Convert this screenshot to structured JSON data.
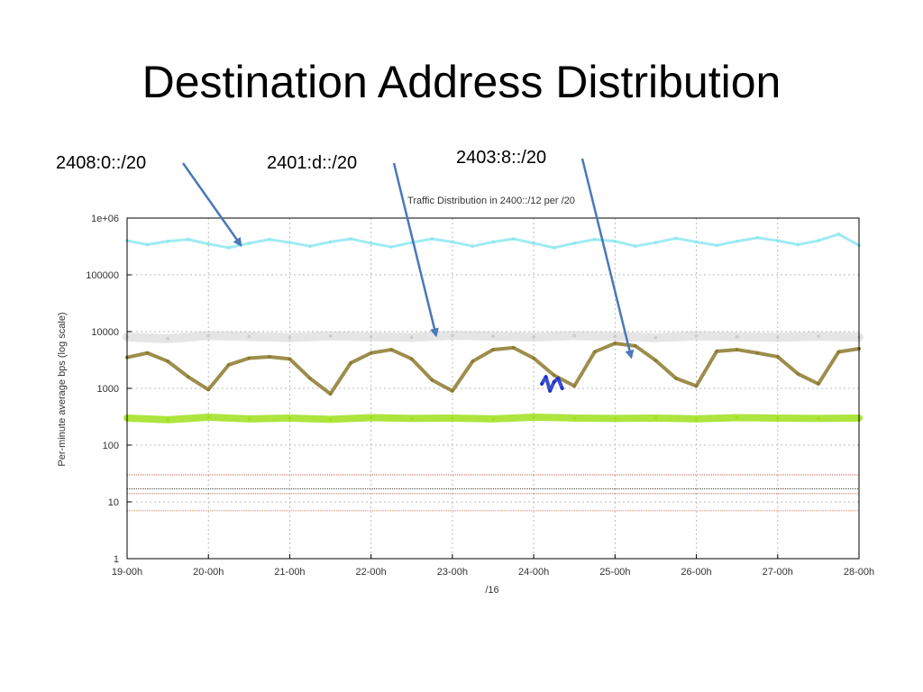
{
  "slide": {
    "title": "Destination Address Distribution"
  },
  "callouts": [
    {
      "label": "2408:0::/20",
      "target_day": 1.4,
      "target_value": 330000
    },
    {
      "label": "2401:d::/20",
      "target_day": 3.8,
      "target_value": 8500
    },
    {
      "label": "2403:8::/20",
      "target_day": 6.2,
      "target_value": 3500
    }
  ],
  "chart_data": {
    "type": "scatter",
    "title": "Traffic Distribution in 2400::/12 per /20",
    "xlabel": "/16",
    "ylabel": "Per-minute average bps (log scale)",
    "yscale": "log",
    "ylim": [
      1,
      1000000
    ],
    "xlim": [
      0,
      9
    ],
    "x_tick_labels": [
      "19-00h",
      "20-00h",
      "21-00h",
      "22-00h",
      "23-00h",
      "24-00h",
      "25-00h",
      "26-00h",
      "27-00h",
      "28-00h"
    ],
    "y_tick_labels": [
      "1",
      "10",
      "100",
      "1000",
      "10000",
      "100000",
      "1e+06"
    ],
    "grid": true,
    "series": [
      {
        "label": "2408:0::/20",
        "color": "#8ee8f0",
        "x": [
          0,
          0.25,
          0.5,
          0.75,
          1,
          1.25,
          1.5,
          1.75,
          2,
          2.25,
          2.5,
          2.75,
          3,
          3.25,
          3.5,
          3.75,
          4,
          4.25,
          4.5,
          4.75,
          5,
          5.25,
          5.5,
          5.75,
          6,
          6.25,
          6.5,
          6.75,
          7,
          7.25,
          7.5,
          7.75,
          8,
          8.25,
          8.5,
          8.75,
          9
        ],
        "y": [
          400000,
          340000,
          390000,
          420000,
          350000,
          300000,
          360000,
          420000,
          370000,
          320000,
          380000,
          430000,
          360000,
          310000,
          370000,
          430000,
          380000,
          320000,
          380000,
          430000,
          360000,
          300000,
          360000,
          420000,
          390000,
          320000,
          370000,
          440000,
          380000,
          330000,
          390000,
          450000,
          400000,
          340000,
          400000,
          520000,
          330000
        ]
      },
      {
        "label": "2401:d::/20",
        "color": "#cccccc",
        "x": [
          0,
          0.5,
          1,
          1.5,
          2,
          2.5,
          3,
          3.5,
          4,
          4.5,
          5,
          5.5,
          6,
          6.5,
          7,
          7.5,
          8,
          8.5,
          9
        ],
        "y": [
          8000,
          7500,
          8500,
          8200,
          7800,
          8400,
          8100,
          7900,
          8600,
          8300,
          8000,
          8500,
          8200,
          7800,
          8400,
          8100,
          7900,
          8300,
          8000
        ]
      },
      {
        "label": "2403:8::/20",
        "color": "#8c7a2e",
        "x": [
          0,
          0.25,
          0.5,
          0.75,
          1,
          1.25,
          1.5,
          1.75,
          2,
          2.25,
          2.5,
          2.75,
          3,
          3.25,
          3.5,
          3.75,
          4,
          4.25,
          4.5,
          4.75,
          5,
          5.25,
          5.5,
          5.75,
          6,
          6.25,
          6.5,
          6.75,
          7,
          7.25,
          7.5,
          7.75,
          8,
          8.25,
          8.5,
          8.75,
          9
        ],
        "y": [
          3500,
          4200,
          3000,
          1600,
          950,
          2600,
          3400,
          3600,
          3300,
          1500,
          800,
          2800,
          4200,
          4800,
          3300,
          1400,
          900,
          3000,
          4800,
          5200,
          3400,
          1700,
          1100,
          4400,
          6200,
          5600,
          3100,
          1500,
          1100,
          4500,
          4800,
          4200,
          3600,
          1800,
          1200,
          4400,
          5000
        ]
      },
      {
        "label": "",
        "color": "#9fe01c",
        "x": [
          0,
          0.5,
          1,
          1.5,
          2,
          2.5,
          3,
          3.5,
          4,
          4.5,
          5,
          5.5,
          6,
          6.5,
          7,
          7.5,
          8,
          8.5,
          9
        ],
        "y": [
          300,
          280,
          310,
          290,
          300,
          285,
          305,
          295,
          300,
          290,
          310,
          300,
          295,
          300,
          290,
          305,
          300,
          295,
          300
        ]
      },
      {
        "label": "",
        "color": "#1a2fc8",
        "x": [
          5.1,
          5.15,
          5.2,
          5.25,
          5.3,
          5.35
        ],
        "y": [
          1200,
          1600,
          900,
          1300,
          1500,
          1000
        ]
      }
    ],
    "baselines": [
      {
        "color": "#333333",
        "value": 17
      },
      {
        "color": "#b05a3a",
        "value": 14
      },
      {
        "color": "#e08060",
        "value": 7
      },
      {
        "color": "#d04040",
        "value": 30
      }
    ]
  }
}
